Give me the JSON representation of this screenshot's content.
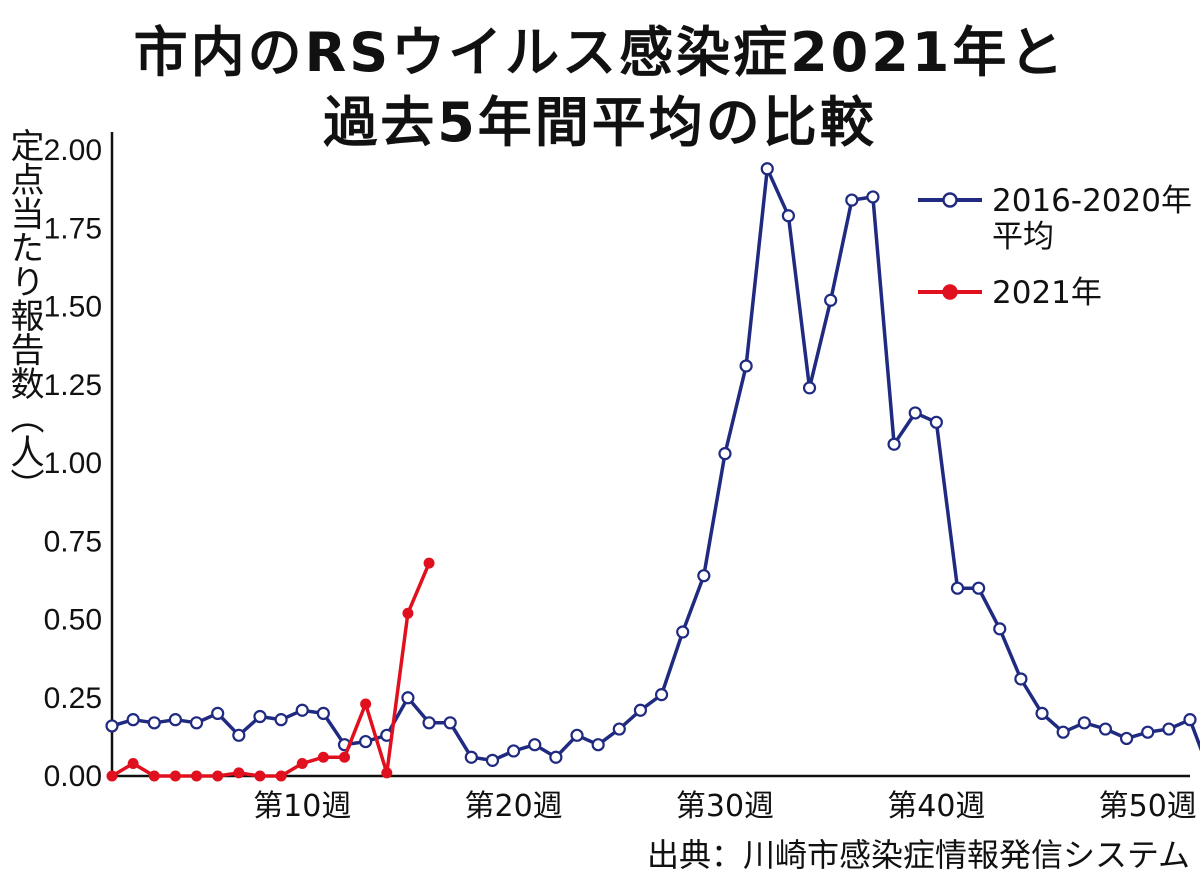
{
  "title_line1": "市内のRSウイルス感染症2021年と",
  "title_line2": "過去5年間平均の比較",
  "source": "出典：川崎市感染症情報発信システム",
  "chart_data": {
    "type": "line",
    "ylabel": "定点当たり報告数（人）",
    "ylim": [
      0,
      2.0
    ],
    "xlim": [
      1,
      52
    ],
    "y_ticks": [
      "0.00",
      "0.25",
      "0.50",
      "0.75",
      "1.00",
      "1.25",
      "1.50",
      "1.75",
      "2.00"
    ],
    "x_ticks": [
      {
        "week": 10,
        "label": "第10週"
      },
      {
        "week": 20,
        "label": "第20週"
      },
      {
        "week": 30,
        "label": "第30週"
      },
      {
        "week": 40,
        "label": "第40週"
      },
      {
        "week": 50,
        "label": "第50週"
      }
    ],
    "legend_position": "top-right",
    "series": [
      {
        "name": "2016-2020年平均",
        "legend_lines": [
          "2016-2020年",
          "平均"
        ],
        "color": "#1f2a80",
        "marker": "open-circle",
        "values": [
          0.16,
          0.18,
          0.17,
          0.18,
          0.17,
          0.2,
          0.13,
          0.19,
          0.18,
          0.21,
          0.2,
          0.1,
          0.11,
          0.13,
          0.25,
          0.17,
          0.17,
          0.06,
          0.05,
          0.08,
          0.1,
          0.06,
          0.13,
          0.1,
          0.15,
          0.21,
          0.26,
          0.46,
          0.64,
          1.03,
          1.31,
          1.94,
          1.79,
          1.24,
          1.52,
          1.84,
          1.85,
          1.06,
          1.16,
          1.13,
          0.6,
          0.6,
          0.47,
          0.31,
          0.2,
          0.14,
          0.17,
          0.15,
          0.12,
          0.14,
          0.15,
          0.18,
          0.0
        ]
      },
      {
        "name": "2021年",
        "legend_lines": [
          "2021年"
        ],
        "color": "#e0101e",
        "marker": "filled-circle",
        "values": [
          0.0,
          0.04,
          0.0,
          0.0,
          0.0,
          0.0,
          0.01,
          0.0,
          0.0,
          0.04,
          0.06,
          0.06,
          0.23,
          0.01,
          0.52,
          0.68
        ]
      }
    ]
  }
}
